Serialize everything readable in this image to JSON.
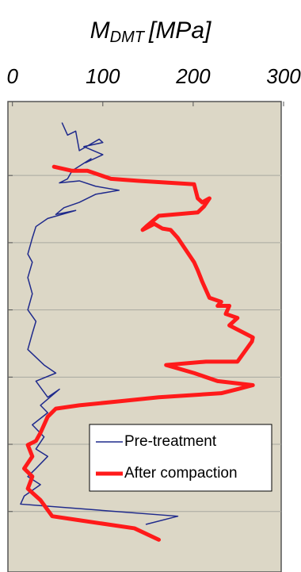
{
  "chart_data": {
    "type": "line",
    "xlabel": {
      "main": "M",
      "sub": "DMT",
      "unit": "[MPa]"
    },
    "xlim": [
      -5,
      300
    ],
    "xticks": [
      0,
      100,
      200,
      300
    ],
    "ylim": [
      -0.1,
      6.9
    ],
    "yticks": [
      1,
      2,
      3,
      4,
      5,
      6
    ],
    "y_inverted": true,
    "grid": true,
    "background": "#dcd7c6",
    "legend": "lower right",
    "series": [
      {
        "name": "Pre-treatment",
        "color": "#1f2a8c",
        "width": 1.5,
        "values": [
          55,
          61,
          70,
          74,
          96,
          100,
          79,
          100,
          81,
          87,
          66,
          61,
          52,
          74,
          92,
          118,
          92,
          74,
          57,
          48,
          70,
          39,
          26,
          22,
          17,
          22,
          17,
          22,
          17,
          26,
          22,
          17,
          35,
          48,
          26,
          39,
          52,
          31,
          39,
          22,
          35,
          26,
          39,
          26,
          17,
          31,
          13,
          9,
          183,
          148
        ],
        "depth": [
          0.22,
          0.4,
          0.34,
          0.63,
          0.46,
          0.51,
          0.57,
          0.69,
          0.81,
          0.75,
          0.93,
          1.05,
          1.11,
          1.08,
          1.16,
          1.22,
          1.28,
          1.4,
          1.48,
          1.58,
          1.52,
          1.64,
          1.76,
          1.93,
          2.17,
          2.29,
          2.52,
          2.76,
          3.0,
          3.17,
          3.35,
          3.59,
          3.82,
          3.94,
          4.06,
          4.3,
          4.18,
          4.42,
          4.53,
          4.71,
          4.89,
          5.07,
          5.18,
          5.36,
          5.48,
          5.6,
          5.77,
          5.89,
          6.07,
          6.19
        ]
      },
      {
        "name": "After compaction",
        "color": "#ff1a1a",
        "width": 5,
        "values": [
          46,
          66,
          83,
          109,
          140,
          201,
          205,
          210,
          218,
          212,
          205,
          162,
          148,
          144,
          157,
          166,
          175,
          183,
          192,
          201,
          205,
          210,
          218,
          231,
          227,
          240,
          236,
          249,
          240,
          266,
          265,
          249,
          214,
          170,
          201,
          227,
          266,
          249,
          231,
          162,
          118,
          74,
          48,
          39,
          31,
          26,
          17,
          22,
          13,
          22,
          17,
          26,
          31,
          44,
          74,
          135,
          162
        ],
        "depth": [
          0.87,
          0.93,
          0.93,
          1.05,
          1.08,
          1.13,
          1.34,
          1.4,
          1.34,
          1.46,
          1.55,
          1.6,
          1.76,
          1.81,
          1.72,
          1.79,
          1.81,
          1.93,
          2.11,
          2.29,
          2.41,
          2.58,
          2.82,
          2.88,
          2.94,
          2.94,
          3.06,
          3.12,
          3.23,
          3.41,
          3.47,
          3.77,
          3.77,
          3.82,
          3.94,
          4.06,
          4.12,
          4.18,
          4.24,
          4.3,
          4.36,
          4.42,
          4.47,
          4.59,
          4.83,
          4.95,
          5.01,
          5.18,
          5.36,
          5.48,
          5.66,
          5.77,
          5.83,
          6.07,
          6.13,
          6.25,
          6.42
        ]
      }
    ]
  }
}
